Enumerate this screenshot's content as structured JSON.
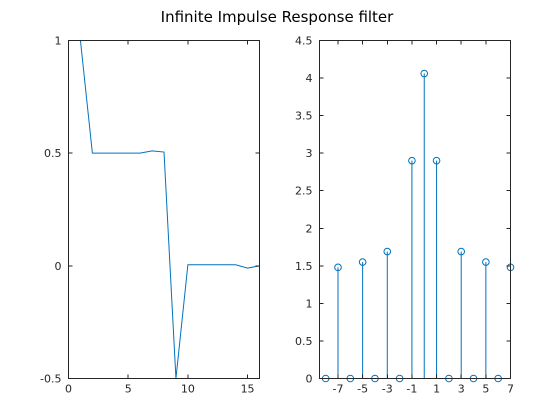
{
  "figure_title": "Infinite Impulse Response filter",
  "colors": {
    "series": "#0072BD",
    "axis": "#262626"
  },
  "chart_data": [
    {
      "type": "line",
      "x": [
        1,
        2,
        3,
        4,
        5,
        6,
        7,
        8,
        9,
        10,
        11,
        12,
        13,
        14,
        15,
        16
      ],
      "values": [
        1.0,
        0.5,
        0.5,
        0.5,
        0.5,
        0.5,
        0.51,
        0.505,
        -0.5,
        0.005,
        0.005,
        0.005,
        0.005,
        0.005,
        -0.01,
        0.0
      ],
      "xlim": [
        0,
        16
      ],
      "ylim": [
        -0.5,
        1
      ],
      "xticks": [
        0,
        5,
        10,
        15
      ],
      "yticks": [
        -0.5,
        0,
        0.5,
        1
      ],
      "xtick_labels": [
        "0",
        "5",
        "10",
        "15"
      ],
      "ytick_labels": [
        "-0.5",
        "0",
        "0.5",
        "1"
      ],
      "grid": false
    },
    {
      "type": "stem",
      "x": [
        -8,
        -7,
        -6,
        -5,
        -4,
        -3,
        -2,
        -1,
        0,
        1,
        2,
        3,
        4,
        5,
        6,
        7
      ],
      "values": [
        0,
        1.48,
        0,
        1.55,
        0,
        1.69,
        0,
        2.9,
        4.06,
        2.9,
        0,
        1.69,
        0,
        1.55,
        0,
        1.48
      ],
      "xlim": [
        -8.5,
        7
      ],
      "ylim": [
        0,
        4.5
      ],
      "xticks": [
        -7,
        -5,
        -3,
        -1,
        1,
        3,
        5,
        7
      ],
      "yticks": [
        0,
        0.5,
        1,
        1.5,
        2,
        2.5,
        3,
        3.5,
        4,
        4.5
      ],
      "xtick_labels": [
        "-7",
        "-5",
        "-3",
        "-1",
        "1",
        "3",
        "5",
        "7"
      ],
      "ytick_labels": [
        "0",
        "0.5",
        "1",
        "1.5",
        "2",
        "2.5",
        "3",
        "3.5",
        "4",
        "4.5"
      ],
      "marker": "circle",
      "grid": false
    }
  ]
}
